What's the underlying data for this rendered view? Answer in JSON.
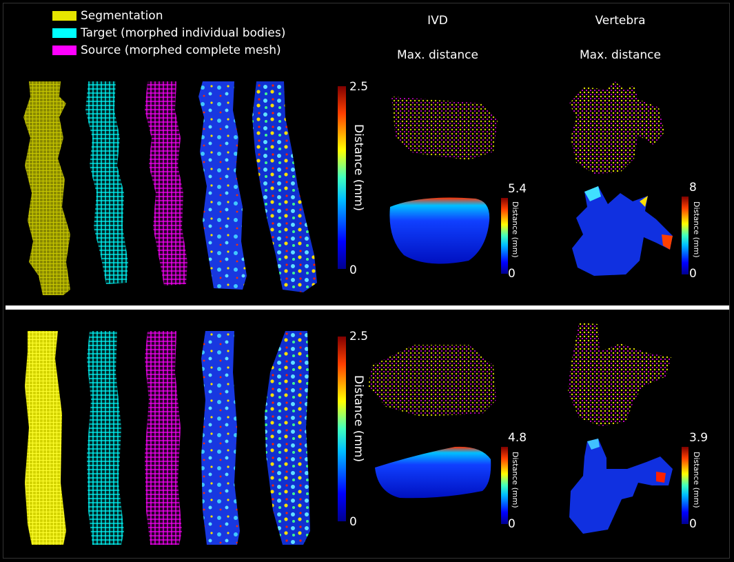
{
  "legend": [
    {
      "label": "Segmentation",
      "color": "#e6e600"
    },
    {
      "label": "Target (morphed individual bodies)",
      "color": "#00ffff"
    },
    {
      "label": "Source (morphed complete mesh)",
      "color": "#ff00ff"
    }
  ],
  "columns": {
    "ivd": {
      "title": "IVD",
      "subtitle": "Max. distance"
    },
    "vertebra": {
      "title": "Vertebra",
      "subtitle": "Max. distance"
    }
  },
  "colorbars": {
    "top_spine": {
      "max": "2.5",
      "min": "0",
      "title": "Distance (mm)"
    },
    "top_ivd": {
      "max": "5.4",
      "min": "0",
      "title": "Distance (mm)"
    },
    "top_vert": {
      "max": "8",
      "min": "0",
      "title": "Distance (mm)"
    },
    "bottom_spine": {
      "max": "2.5",
      "min": "0",
      "title": "Distance (mm)"
    },
    "bottom_ivd": {
      "max": "4.8",
      "min": "0",
      "title": "Distance (mm)"
    },
    "bottom_vert": {
      "max": "3.9",
      "min": "0",
      "title": "Distance (mm)"
    }
  }
}
